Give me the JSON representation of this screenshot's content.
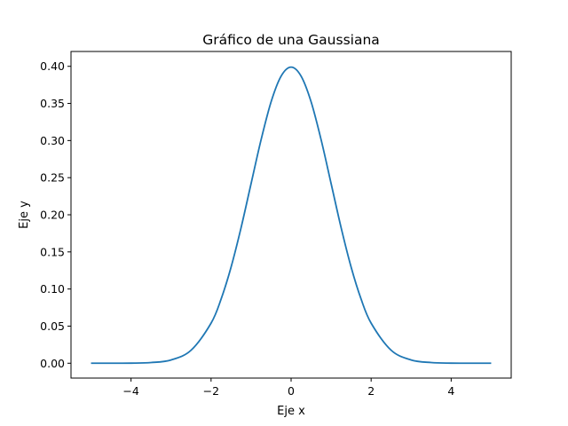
{
  "chart_data": {
    "type": "line",
    "title": "Gráfico de una Gaussiana",
    "xlabel": "Eje x",
    "ylabel": "Eje y",
    "xlim": [
      -5.5,
      5.5
    ],
    "ylim": [
      -0.02,
      0.42
    ],
    "x_ticks": [
      -4,
      -2,
      0,
      2,
      4
    ],
    "x_tick_labels": [
      "−4",
      "−2",
      "0",
      "2",
      "4"
    ],
    "y_ticks": [
      0.0,
      0.05,
      0.1,
      0.15,
      0.2,
      0.25,
      0.3,
      0.35,
      0.4
    ],
    "y_tick_labels": [
      "0.00",
      "0.05",
      "0.10",
      "0.15",
      "0.20",
      "0.25",
      "0.30",
      "0.35",
      "0.40"
    ],
    "grid": false,
    "legend": "none",
    "series": [
      {
        "color": "#1f77b4",
        "x": [
          -5.0,
          -4.5,
          -4.0,
          -3.5,
          -3.0,
          -2.5,
          -2.0,
          -1.75,
          -1.5,
          -1.25,
          -1.0,
          -0.75,
          -0.5,
          -0.25,
          0.0,
          0.25,
          0.5,
          0.75,
          1.0,
          1.25,
          1.5,
          1.75,
          2.0,
          2.5,
          3.0,
          3.5,
          4.0,
          4.5,
          5.0
        ],
        "y": [
          0.0,
          0.0,
          0.0001,
          0.0009,
          0.0044,
          0.0175,
          0.054,
          0.0863,
          0.1295,
          0.1826,
          0.242,
          0.3011,
          0.3521,
          0.3867,
          0.3989,
          0.3867,
          0.3521,
          0.3011,
          0.242,
          0.1826,
          0.1295,
          0.0863,
          0.054,
          0.0175,
          0.0044,
          0.0009,
          0.0001,
          0.0,
          0.0
        ]
      }
    ]
  }
}
